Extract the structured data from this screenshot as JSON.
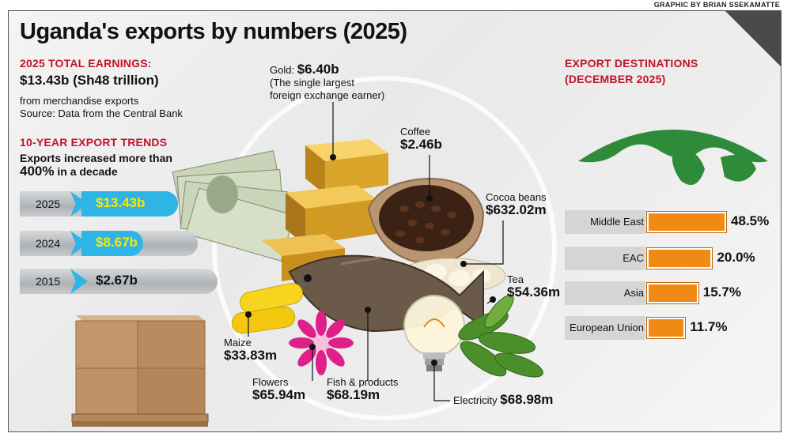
{
  "credit": "GRAPHIC BY BRIAN SSEKAMATTE",
  "title": "Uganda's exports by numbers (2025)",
  "total": {
    "heading": "2025 TOTAL EARNINGS:",
    "amount": "$13.43b (Sh48 trillion)",
    "desc": "from merchandise exports",
    "source": "Source: Data from the Central Bank"
  },
  "trends": {
    "heading": "10-YEAR EXPORT TRENDS",
    "line1": "Exports increased more than",
    "line2_value": "400%",
    "line2_rest": " in a decade",
    "rows": [
      {
        "year": "2025",
        "value": "$13.43b"
      },
      {
        "year": "2024",
        "value": "$8.67b"
      },
      {
        "year": "2015",
        "value": "$2.67b"
      }
    ]
  },
  "products": {
    "gold": {
      "label": "Gold:",
      "value": "$6.40b",
      "note1": "(The single largest",
      "note2": "foreign exchange earner)"
    },
    "coffee": {
      "label": "Coffee",
      "value": "$2.46b"
    },
    "cocoa": {
      "label": "Cocoa beans",
      "value": "$632.02m"
    },
    "tea": {
      "label": "Tea",
      "value": "$54.36m"
    },
    "maize": {
      "label": "Maize",
      "value": "$33.83m"
    },
    "flowers": {
      "label": "Flowers",
      "value": "$65.94m"
    },
    "fish": {
      "label": "Fish & products",
      "value": "$68.19m"
    },
    "electricity": {
      "label": "Electricity",
      "value": "$68.98m"
    }
  },
  "destinations": {
    "heading1": "EXPORT DESTINATIONS",
    "heading2": "(DECEMBER 2025)",
    "rows": [
      {
        "name": "Middle East",
        "value": "48.5%",
        "share": 48.5
      },
      {
        "name": "EAC",
        "value": "20.0%",
        "share": 20.0
      },
      {
        "name": "Asia",
        "value": "15.7%",
        "share": 15.7
      },
      {
        "name": "European Union",
        "value": "11.7%",
        "share": 11.7
      }
    ]
  },
  "colors": {
    "accent_red": "#c0142a",
    "bar_orange": "#f08a14",
    "arrow_blue": "#2fb4e6",
    "value_yellow": "#ffe600",
    "globe_green": "#2e8b3a"
  }
}
